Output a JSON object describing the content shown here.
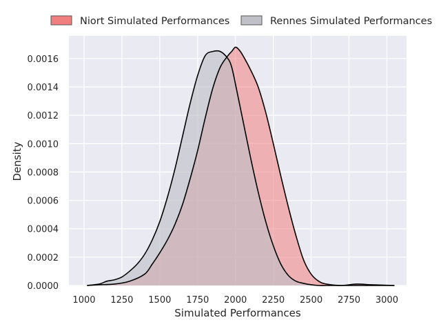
{
  "chart_data": {
    "type": "area",
    "xlabel": "Simulated Performances",
    "ylabel": "Density",
    "xlim": [
      900,
      3130
    ],
    "ylim": [
      0,
      0.00176
    ],
    "xticks": [
      1000,
      1250,
      1500,
      1750,
      2000,
      2250,
      2500,
      2750,
      3000
    ],
    "yticks": [
      0.0,
      0.0002,
      0.0004,
      0.0006,
      0.0008,
      0.001,
      0.0012,
      0.0014,
      0.0016
    ],
    "ytick_labels": [
      "0.0000",
      "0.0002",
      "0.0004",
      "0.0006",
      "0.0008",
      "0.0010",
      "0.0012",
      "0.0014",
      "0.0016"
    ],
    "grid": true,
    "legend_position": "top-outside",
    "series": [
      {
        "name": "Niort Simulated Performances",
        "color": "#f08080",
        "fill_opacity": 0.55,
        "x": [
          1020,
          1100,
          1200,
          1300,
          1400,
          1450,
          1500,
          1550,
          1600,
          1650,
          1700,
          1750,
          1800,
          1850,
          1900,
          1950,
          1975,
          2000,
          2025,
          2050,
          2100,
          2150,
          2200,
          2250,
          2300,
          2350,
          2400,
          2450,
          2500,
          2550,
          2600,
          2700,
          2800,
          2900,
          3050
        ],
        "y": [
          0.0,
          5e-06,
          1e-05,
          3e-05,
          8e-05,
          0.00015,
          0.00023,
          0.00032,
          0.00043,
          0.00057,
          0.00075,
          0.00095,
          0.00118,
          0.00139,
          0.00154,
          0.00162,
          0.00165,
          0.00168,
          0.00166,
          0.00162,
          0.00152,
          0.0014,
          0.00122,
          0.001,
          0.00077,
          0.00055,
          0.00035,
          0.00018,
          8e-05,
          3e-05,
          1e-05,
          0.0,
          1e-05,
          5e-06,
          0.0
        ]
      },
      {
        "name": "Rennes Simulated Performances",
        "color": "#c0c0c8",
        "fill_opacity": 0.65,
        "x": [
          1020,
          1100,
          1150,
          1200,
          1250,
          1300,
          1350,
          1400,
          1450,
          1500,
          1550,
          1600,
          1650,
          1700,
          1750,
          1800,
          1850,
          1900,
          1950,
          1975,
          2000,
          2050,
          2100,
          2150,
          2200,
          2250,
          2300,
          2350,
          2400,
          2450,
          2500,
          2550,
          2600,
          2700,
          2800,
          3050
        ],
        "y": [
          0.0,
          1e-05,
          3e-05,
          4e-05,
          6e-05,
          0.0001,
          0.00015,
          0.00022,
          0.00032,
          0.00045,
          0.00062,
          0.00082,
          0.00105,
          0.00128,
          0.00148,
          0.00162,
          0.00165,
          0.00165,
          0.0016,
          0.00154,
          0.00142,
          0.00116,
          0.0009,
          0.00066,
          0.00045,
          0.00028,
          0.00015,
          7e-05,
          3e-05,
          1.5e-05,
          5e-06,
          0.0,
          0.0,
          0.0,
          0.0,
          0.0
        ]
      }
    ]
  }
}
